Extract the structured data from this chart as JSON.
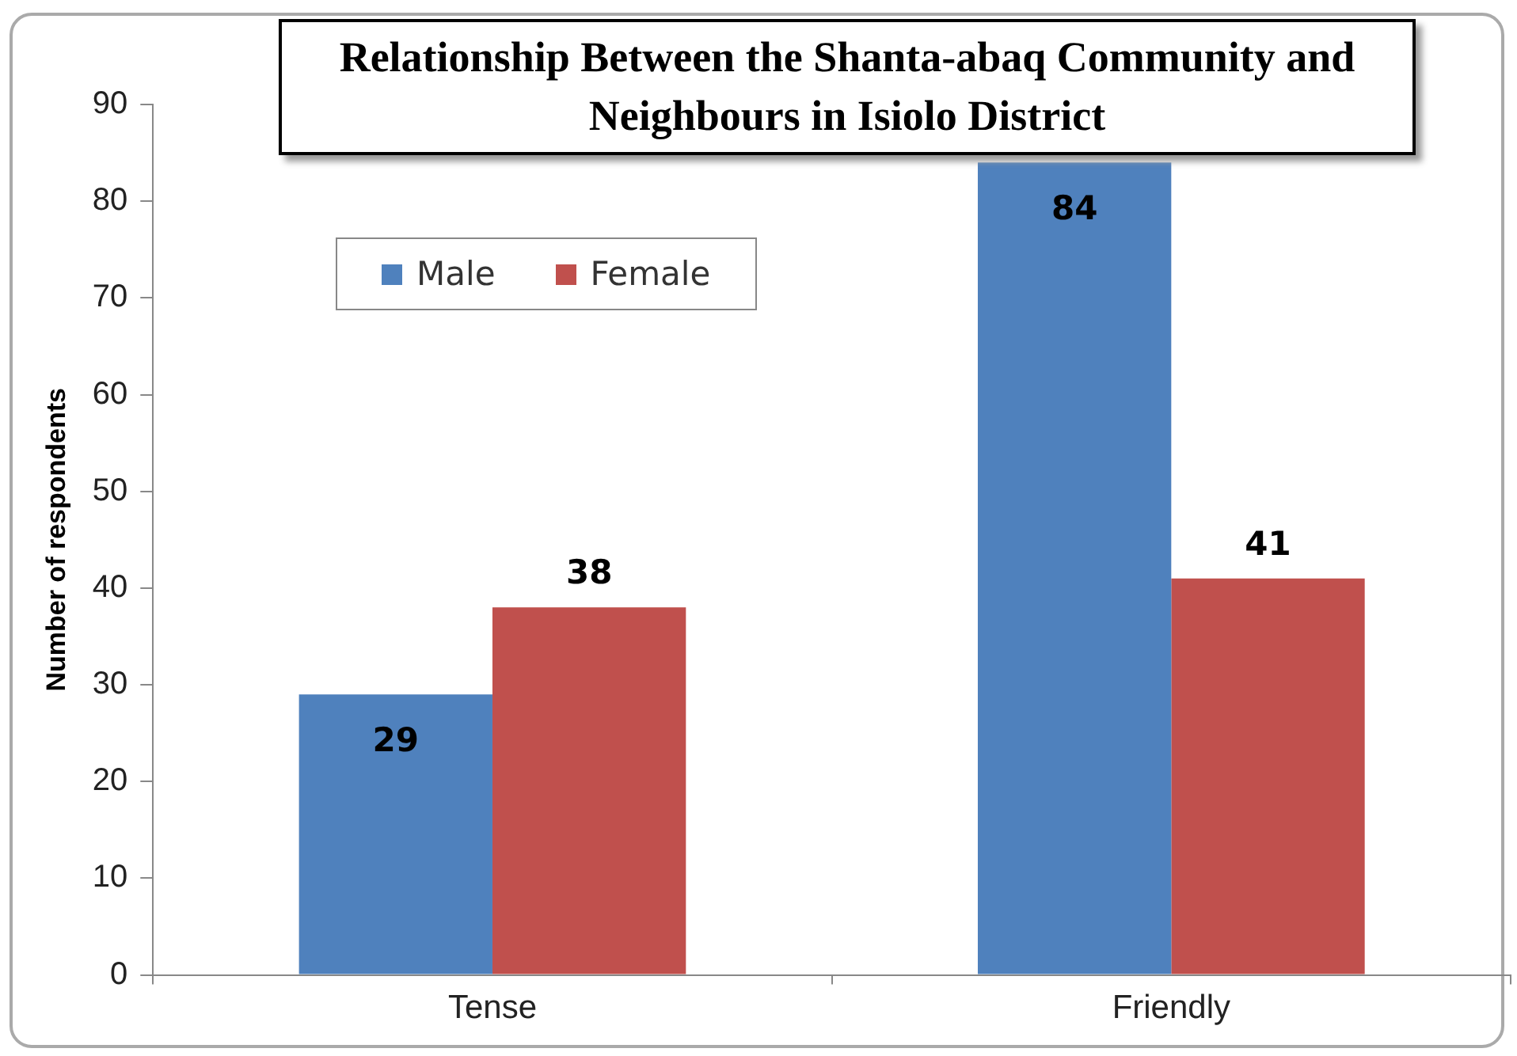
{
  "chart_data": {
    "type": "bar",
    "title": "Relationship Between the Shanta-abaq Community and Neighbours in Isiolo District",
    "ylabel": "Number of respondents",
    "categories": [
      "Tense",
      "Friendly"
    ],
    "series": [
      {
        "name": "Male",
        "color": "#4f81bd",
        "values": [
          29,
          84
        ]
      },
      {
        "name": "Female",
        "color": "#c0504d",
        "values": [
          38,
          41
        ]
      }
    ],
    "ylim": [
      0,
      90
    ],
    "yticks": [
      0,
      10,
      20,
      30,
      40,
      50,
      60,
      70,
      80,
      90
    ],
    "grid": false,
    "legend": "top left",
    "data_labels": true
  }
}
